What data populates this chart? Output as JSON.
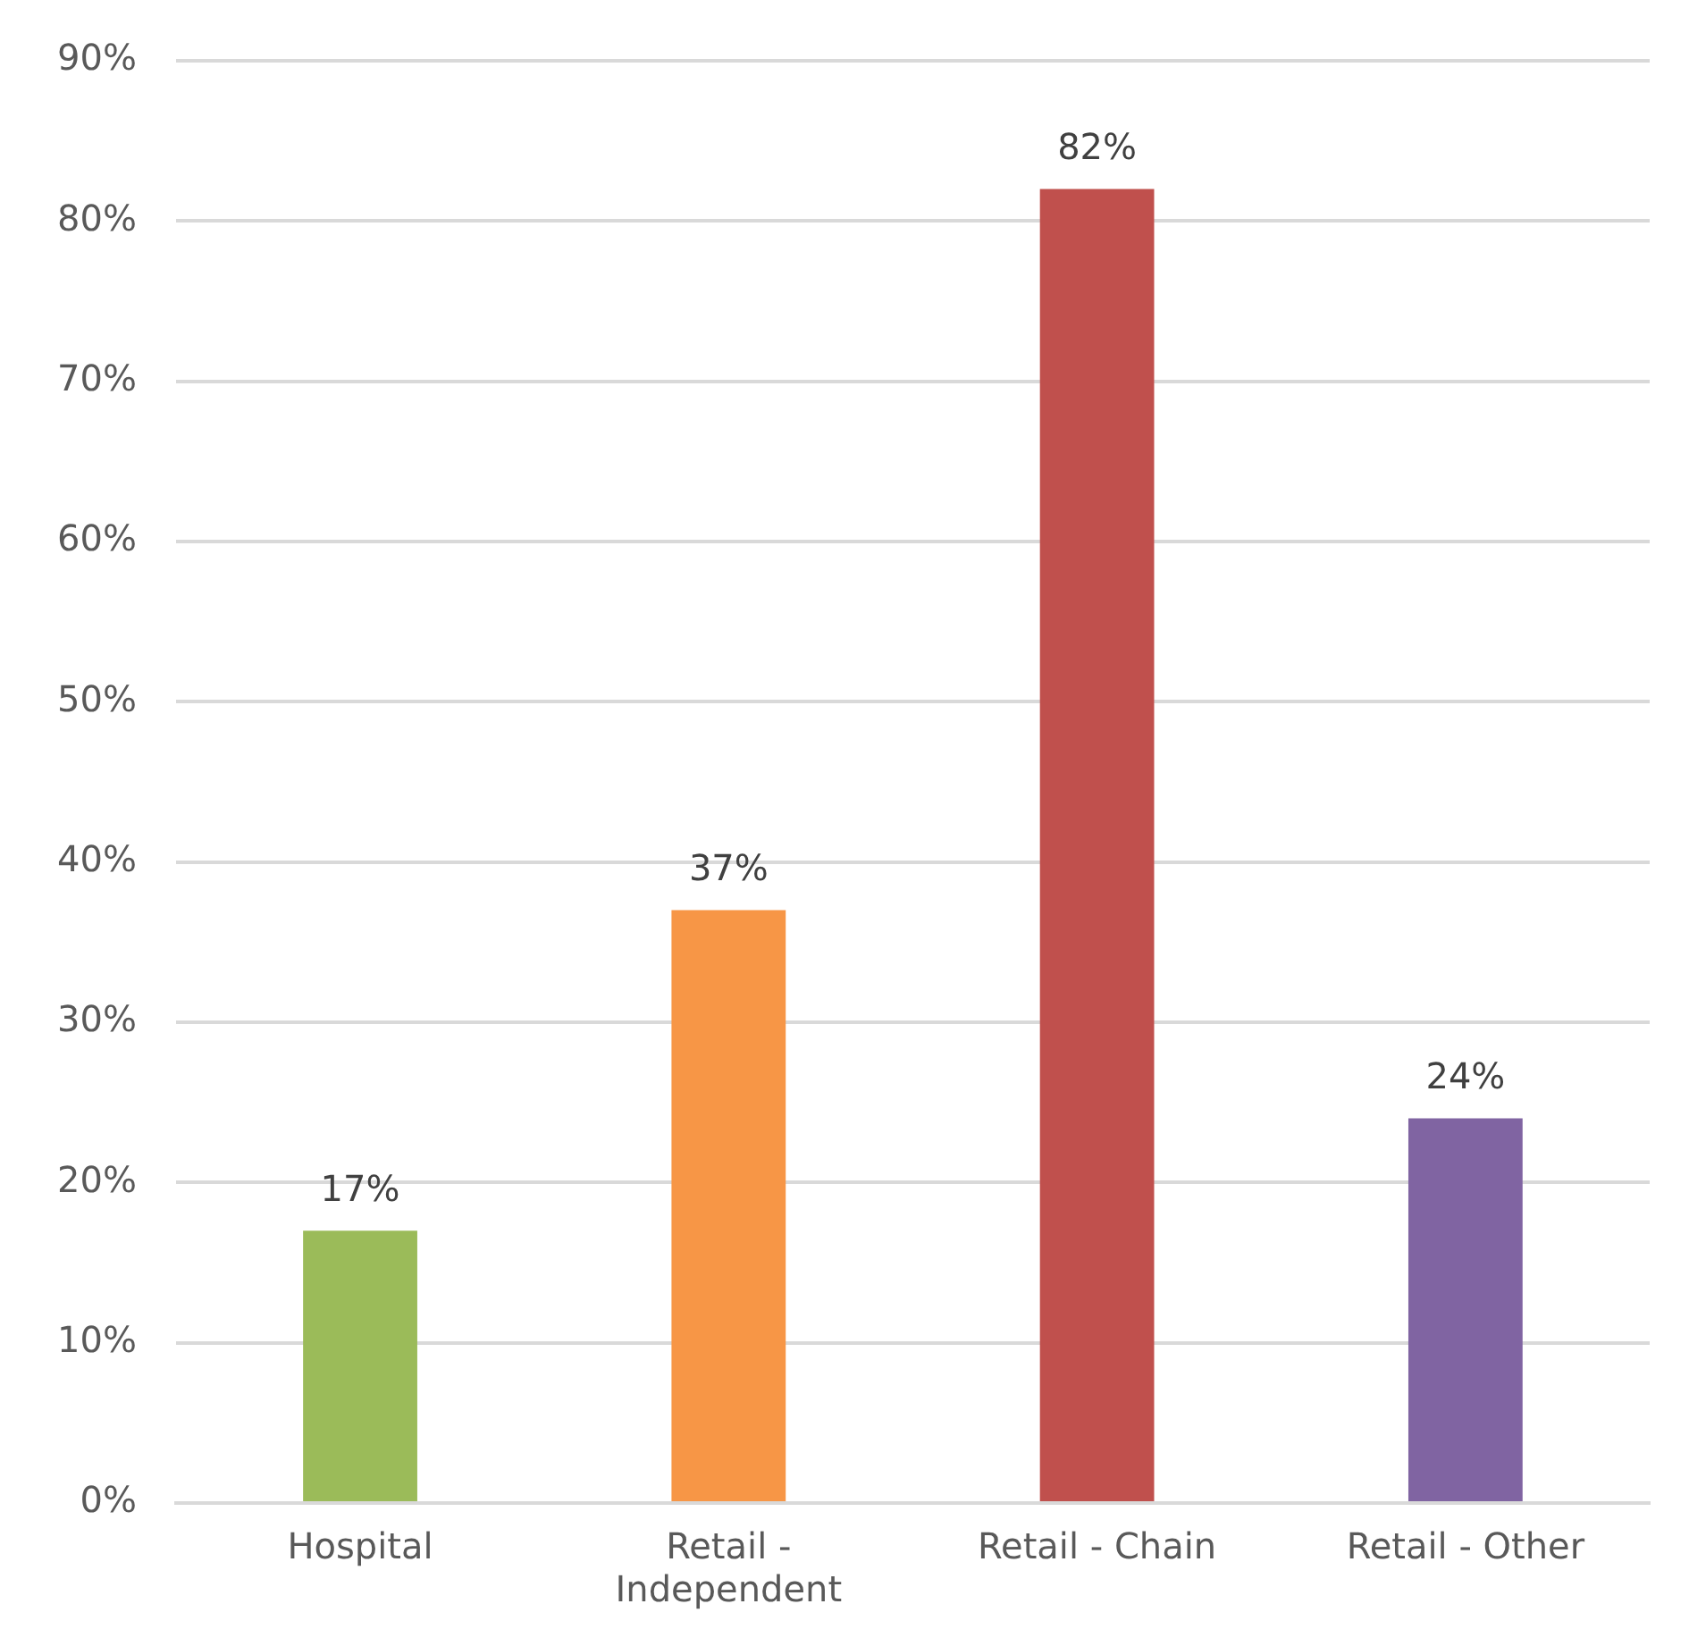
{
  "chart_data": {
    "type": "bar",
    "categories": [
      "Hospital",
      "Retail - Independent",
      "Retail - Chain",
      "Retail - Other"
    ],
    "values": [
      17,
      37,
      82,
      24
    ],
    "colors": [
      "#9bbb59",
      "#f79646",
      "#c0504d",
      "#8064a2"
    ],
    "value_labels": [
      "17%",
      "37%",
      "82%",
      "24%"
    ],
    "ylim": [
      0,
      90
    ],
    "yticks": [
      {
        "value": 0,
        "label": "0%"
      },
      {
        "value": 10,
        "label": "10%"
      },
      {
        "value": 20,
        "label": "20%"
      },
      {
        "value": 30,
        "label": "30%"
      },
      {
        "value": 40,
        "label": "40%"
      },
      {
        "value": 50,
        "label": "50%"
      },
      {
        "value": 60,
        "label": "60%"
      },
      {
        "value": 70,
        "label": "70%"
      },
      {
        "value": 80,
        "label": "80%"
      },
      {
        "value": 90,
        "label": "90%"
      }
    ],
    "grid": "y"
  }
}
